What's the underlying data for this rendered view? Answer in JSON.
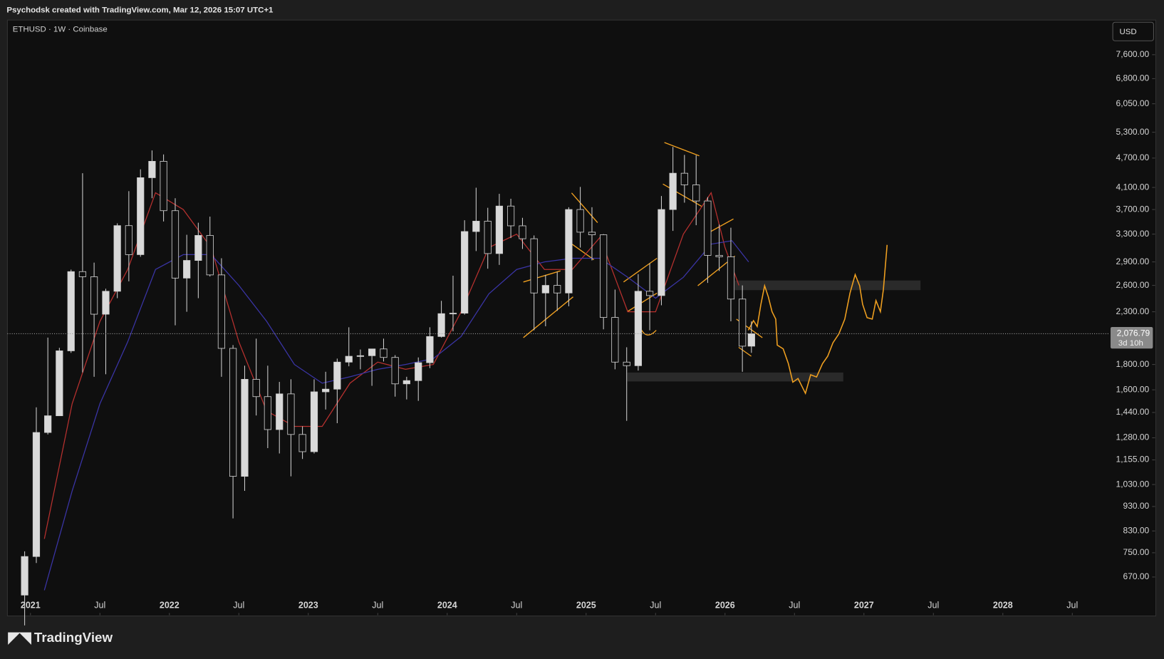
{
  "header": {
    "credit": "Psychodsk created with TradingView.com, Mar 12, 2026 15:07 UTC+1",
    "symbol": "ETHUSD · 1W · Coinbase",
    "currency": "USD",
    "logo": "TradingView"
  },
  "chart_data": {
    "type": "candlestick",
    "log_scale": true,
    "up_color": "#d9d9d9",
    "down_color": "#0f0f0f",
    "wick_color": "#cfcfcf",
    "xlim": [
      2020.834,
      2028.77
    ],
    "ylim": [
      620,
      8930
    ],
    "xticks": [
      2021,
      {
        "value": 2021.5,
        "label": "Jul"
      },
      2022,
      {
        "value": 2022.5,
        "label": "Jul"
      },
      2023,
      {
        "value": 2023.5,
        "label": "Jul"
      },
      2024,
      {
        "value": 2024.5,
        "label": "Jul"
      },
      2025,
      {
        "value": 2025.5,
        "label": "Jul"
      },
      2026,
      {
        "value": 2026.5,
        "label": "Jul"
      },
      2027,
      {
        "value": 2027.5,
        "label": "Jul"
      },
      2028,
      {
        "value": 2028.5,
        "label": "Jul"
      }
    ],
    "yticks": [
      {
        "value": 7600,
        "label": "7,600.00"
      },
      {
        "value": 6800,
        "label": "6,800.00"
      },
      {
        "value": 6050,
        "label": "6,050.00"
      },
      {
        "value": 5300,
        "label": "5,300.00"
      },
      {
        "value": 4700,
        "label": "4,700.00"
      },
      {
        "value": 4100,
        "label": "4,100.00"
      },
      {
        "value": 3700,
        "label": "3,700.00"
      },
      {
        "value": 3300,
        "label": "3,300.00"
      },
      {
        "value": 2900,
        "label": "2,900.00"
      },
      {
        "value": 2600,
        "label": "2,600.00"
      },
      {
        "value": 2300,
        "label": "2,300.00"
      },
      {
        "value": 1800,
        "label": "1,800.00"
      },
      {
        "value": 1600,
        "label": "1,600.00"
      },
      {
        "value": 1440,
        "label": "1,440.00"
      },
      {
        "value": 1280,
        "label": "1,280.00"
      },
      {
        "value": 1155,
        "label": "1,155.00"
      },
      {
        "value": 1030,
        "label": "1,030.00"
      },
      {
        "value": 930,
        "label": "930.00"
      },
      {
        "value": 830,
        "label": "830.00"
      },
      {
        "value": 750,
        "label": "750.00"
      },
      {
        "value": 670,
        "label": "670.00"
      }
    ],
    "last_price": {
      "value": 2076.79,
      "label": "2,076.79"
    },
    "countdown": "3d 10h",
    "x": [
      2020.958,
      2021.042,
      2021.125,
      2021.208,
      2021.292,
      2021.375,
      2021.458,
      2021.542,
      2021.625,
      2021.708,
      2021.792,
      2021.875,
      2021.958,
      2022.042,
      2022.125,
      2022.208,
      2022.292,
      2022.375,
      2022.458,
      2022.542,
      2022.625,
      2022.708,
      2022.792,
      2022.875,
      2022.958,
      2023.042,
      2023.125,
      2023.208,
      2023.292,
      2023.375,
      2023.458,
      2023.542,
      2023.625,
      2023.708,
      2023.792,
      2023.875,
      2023.958,
      2024.042,
      2024.125,
      2024.208,
      2024.292,
      2024.375,
      2024.458,
      2024.542,
      2024.625,
      2024.708,
      2024.792,
      2024.875,
      2024.958,
      2025.042,
      2025.125,
      2025.208,
      2025.292,
      2025.375,
      2025.458,
      2025.542,
      2025.625,
      2025.708,
      2025.792,
      2025.875,
      2025.958,
      2026.042,
      2026.125,
      2026.19
    ],
    "open": [
      616,
      737,
      1312,
      1418,
      1918,
      2772,
      2707,
      2274,
      2530,
      3433,
      3000,
      4290,
      4630,
      3680,
      2690,
      2920,
      3280,
      2730,
      1940,
      1070,
      1680,
      1550,
      1330,
      1570,
      1300,
      1200,
      1585,
      1605,
      1820,
      1870,
      1875,
      1935,
      1860,
      1645,
      1670,
      1815,
      2050,
      2280,
      2285,
      3340,
      3505,
      3015,
      3760,
      3430,
      3230,
      2510,
      2600,
      2510,
      3700,
      3330,
      3290,
      2240,
      1820,
      1790,
      2530,
      2480,
      3700,
      4380,
      4150,
      3850,
      2990,
      2970,
      2440,
      1960
    ],
    "high": [
      755,
      1475,
      2040,
      1945,
      2798,
      4380,
      2890,
      2560,
      3470,
      4030,
      4460,
      4870,
      4780,
      3900,
      3290,
      3480,
      3580,
      2950,
      1970,
      1790,
      2030,
      1790,
      1660,
      1680,
      1350,
      1680,
      1740,
      1850,
      2140,
      1930,
      1930,
      2030,
      1880,
      1700,
      1860,
      2140,
      2420,
      2720,
      3520,
      4095,
      3730,
      3980,
      3890,
      3560,
      3280,
      2730,
      2770,
      3740,
      4110,
      3740,
      3300,
      2550,
      1950,
      2740,
      2880,
      3940,
      4950,
      4770,
      4760,
      3920,
      3450,
      3400,
      2600,
      2200
    ],
    "low": [
      535,
      715,
      1300,
      1450,
      1900,
      1735,
      1700,
      1720,
      2450,
      2650,
      2970,
      3900,
      3500,
      2160,
      2300,
      2450,
      2710,
      1700,
      880,
      1000,
      1420,
      1220,
      1190,
      1070,
      1160,
      1190,
      1460,
      1370,
      1785,
      1760,
      1630,
      1825,
      1550,
      1530,
      1520,
      1770,
      2040,
      2100,
      2270,
      3050,
      2810,
      2860,
      3240,
      3080,
      2110,
      2150,
      2310,
      2360,
      3100,
      2920,
      2120,
      1760,
      1385,
      1750,
      2110,
      2370,
      3350,
      3820,
      3440,
      2630,
      2780,
      2200,
      1740,
      1900
    ],
    "close": [
      737,
      1312,
      1418,
      1918,
      2772,
      2707,
      2274,
      2530,
      3433,
      3000,
      4290,
      4630,
      3680,
      2690,
      2920,
      3280,
      2730,
      1940,
      1070,
      1680,
      1550,
      1330,
      1570,
      1300,
      1200,
      1585,
      1605,
      1820,
      1870,
      1875,
      1935,
      1860,
      1645,
      1670,
      1815,
      2050,
      2280,
      2285,
      3340,
      3505,
      3015,
      3760,
      3430,
      3230,
      2510,
      2600,
      2510,
      3700,
      3330,
      3290,
      2240,
      1820,
      1790,
      2530,
      2480,
      3700,
      4380,
      4150,
      3850,
      2990,
      2970,
      2440,
      1960,
      2076.79
    ],
    "moving_averages": [
      {
        "color": "#b8312f",
        "x": [
          2021.1,
          2021.3,
          2021.5,
          2021.7,
          2021.9,
          2022.1,
          2022.3,
          2022.5,
          2022.7,
          2022.9,
          2023.1,
          2023.3,
          2023.5,
          2023.7,
          2023.9,
          2024.1,
          2024.3,
          2024.5,
          2024.7,
          2024.9,
          2025.1,
          2025.3,
          2025.5,
          2025.7,
          2025.9,
          2026.0,
          2026.1
        ],
        "values": [
          800,
          1500,
          2200,
          2800,
          4000,
          3700,
          3100,
          2000,
          1450,
          1350,
          1350,
          1650,
          1820,
          1760,
          1800,
          2300,
          3100,
          3300,
          2800,
          2800,
          3250,
          2300,
          2300,
          3300,
          4000,
          3100,
          2600
        ]
      },
      {
        "color": "#3b35a8",
        "x": [
          2021.1,
          2021.3,
          2021.5,
          2021.7,
          2021.9,
          2022.1,
          2022.3,
          2022.5,
          2022.7,
          2022.9,
          2023.1,
          2023.3,
          2023.5,
          2023.7,
          2023.9,
          2024.1,
          2024.3,
          2024.5,
          2024.7,
          2024.9,
          2025.1,
          2025.3,
          2025.5,
          2025.7,
          2025.9,
          2026.05,
          2026.17
        ],
        "values": [
          630,
          1000,
          1500,
          2000,
          2800,
          3000,
          3000,
          2600,
          2200,
          1800,
          1650,
          1700,
          1760,
          1800,
          1850,
          2050,
          2500,
          2800,
          2900,
          2950,
          2950,
          2700,
          2450,
          2700,
          3150,
          3200,
          2900
        ]
      }
    ]
  }
}
